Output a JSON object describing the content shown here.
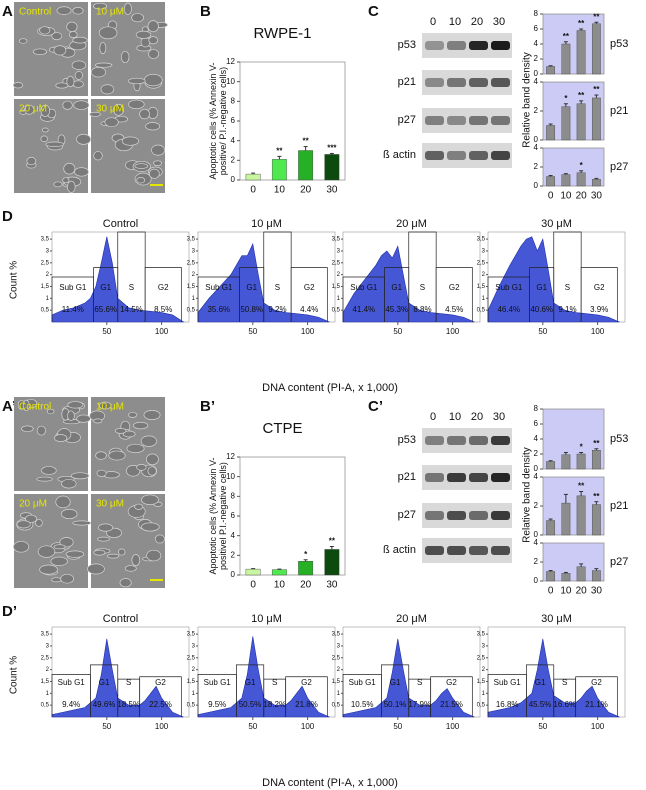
{
  "panel_labels": [
    "A",
    "B",
    "C",
    "D",
    "A’",
    "B’",
    "C’",
    "D’"
  ],
  "micrographs": [
    {
      "labels": [
        "Control",
        "10 μM",
        "20 μM",
        "30 μM"
      ]
    },
    {
      "labels": [
        "Control",
        "10 μM",
        "20 μM",
        "30 μM"
      ]
    }
  ],
  "blots": [
    {
      "lanes": [
        "0",
        "10",
        "20",
        "30"
      ],
      "proteins": [
        "p53",
        "p21",
        "p27",
        "ß actin"
      ]
    },
    {
      "lanes": [
        "0",
        "10",
        "20",
        "30"
      ],
      "proteins": [
        "p53",
        "p21",
        "p27",
        "ß actin"
      ]
    }
  ],
  "chart_data": [
    {
      "type": "bar",
      "title": "RWPE-1",
      "ylabel": "Apoptotic cells (% Annexin V-positive/ P.I.-negative cells)",
      "categories": [
        "0",
        "10",
        "20",
        "30"
      ],
      "values": [
        0.6,
        2.1,
        3.0,
        2.6
      ],
      "errors": [
        0.1,
        0.3,
        0.4,
        0.1
      ],
      "annotations": [
        null,
        "**",
        "**",
        "***"
      ],
      "colors": [
        "#c8f5a0",
        "#4fe84f",
        "#25b025",
        "#0d4a0d"
      ],
      "ylim": [
        0,
        12
      ],
      "yticks": [
        0,
        2,
        4,
        6,
        8,
        10,
        12
      ]
    },
    {
      "type": "bar",
      "label": "p53",
      "ylabel": "Relative band density",
      "values": [
        1,
        4,
        5.8,
        6.7
      ],
      "errors": [
        0.1,
        0.3,
        0.2,
        0.2
      ],
      "annotations": [
        null,
        "**",
        "**",
        "**"
      ],
      "color": "#8c8c8c",
      "ylim": [
        0,
        8
      ],
      "yticks": [
        0,
        2,
        4,
        6,
        8
      ]
    },
    {
      "type": "bar",
      "label": "p21",
      "values": [
        1,
        2.3,
        2.5,
        2.9
      ],
      "errors": [
        0.1,
        0.2,
        0.2,
        0.2
      ],
      "annotations": [
        null,
        "*",
        "**",
        "**"
      ],
      "color": "#8c8c8c",
      "ylim": [
        0,
        4
      ],
      "yticks": [
        0,
        2,
        4
      ]
    },
    {
      "type": "bar",
      "label": "p27",
      "categories": [
        "0",
        "10",
        "20",
        "30"
      ],
      "values": [
        1,
        1.2,
        1.4,
        0.7
      ],
      "errors": [
        0.1,
        0.1,
        0.2,
        0.1
      ],
      "annotations": [
        null,
        null,
        "*",
        null
      ],
      "color": "#8c8c8c",
      "ylim": [
        0,
        4
      ],
      "yticks": [
        0,
        2,
        4
      ]
    },
    {
      "type": "area",
      "xlabel": "DNA content (PI-A, x 1,000)",
      "ylabel": "Count %",
      "x": [
        0,
        10,
        20,
        30,
        35,
        40,
        45,
        50,
        55,
        60,
        70,
        80,
        90,
        100,
        110,
        120
      ],
      "xlim": [
        0,
        125
      ],
      "xticks": [
        50,
        100
      ],
      "ylim": [
        0,
        3.8
      ],
      "yticks": [
        {
          "value": 0.5,
          "label": "0,5"
        },
        1,
        {
          "value": 1.5,
          "label": "1,5"
        },
        2,
        {
          "value": 2.5,
          "label": "2,5"
        },
        3,
        {
          "value": 3.5,
          "label": "3,5"
        }
      ],
      "gate_names": [
        "Sub G1",
        "G1",
        "S",
        "G2"
      ],
      "gate_edges": [
        0,
        38,
        60,
        85,
        118
      ],
      "gate_heights": [
        1.9,
        2.3,
        3.8,
        2.3
      ],
      "color": "#4657d6",
      "panels": [
        {
          "title": "Control",
          "values": [
            0.3,
            0.5,
            0.6,
            0.8,
            1.0,
            1.5,
            2.5,
            3.6,
            2.5,
            1.0,
            0.6,
            0.5,
            0.45,
            0.4,
            0.3,
            0
          ],
          "gate_labels": [
            "11.4%",
            "65.6%",
            "14.5%",
            "8.5%"
          ]
        },
        {
          "title": "10 μM",
          "values": [
            0.4,
            1.0,
            1.5,
            2.0,
            2.4,
            2.8,
            2.8,
            3.3,
            2.0,
            0.8,
            0.5,
            0.4,
            0.35,
            0.3,
            0.2,
            0
          ],
          "gate_labels": [
            "35.6%",
            "50.8%",
            "9.2%",
            "4.4%"
          ]
        },
        {
          "title": "20 μM",
          "values": [
            0.4,
            1.2,
            1.8,
            2.4,
            2.8,
            3.0,
            2.7,
            3.2,
            2.0,
            0.8,
            0.5,
            0.4,
            0.35,
            0.3,
            0.2,
            0
          ],
          "gate_labels": [
            "41.4%",
            "45.3%",
            "8.8%",
            "4.5%"
          ]
        },
        {
          "title": "30 μM",
          "values": [
            0.5,
            1.5,
            2.4,
            3.2,
            3.5,
            3.6,
            3.0,
            3.5,
            2.2,
            0.8,
            0.5,
            0.4,
            0.35,
            0.3,
            0.2,
            0
          ],
          "gate_labels": [
            "46.4%",
            "40.6%",
            "9.1%",
            "3.9%"
          ]
        }
      ]
    },
    {
      "type": "bar",
      "title": "CTPE",
      "ylabel": "Apoptotic cells (% Annexin V-positivel P.I.-negative cells)",
      "categories": [
        "0",
        "10",
        "20",
        "30"
      ],
      "values": [
        0.6,
        0.55,
        1.4,
        2.6
      ],
      "errors": [
        0.05,
        0.05,
        0.15,
        0.3
      ],
      "annotations": [
        null,
        null,
        "*",
        "**"
      ],
      "colors": [
        "#c8f5a0",
        "#4fe84f",
        "#25b025",
        "#0d4a0d"
      ],
      "ylim": [
        0,
        12
      ],
      "yticks": [
        0,
        2,
        4,
        6,
        8,
        10,
        12
      ]
    },
    {
      "type": "bar",
      "label": "p53",
      "ylabel": "Relative band density",
      "values": [
        1,
        1.9,
        2,
        2.5
      ],
      "errors": [
        0.1,
        0.3,
        0.2,
        0.2
      ],
      "annotations": [
        null,
        null,
        "*",
        "**"
      ],
      "color": "#8c8c8c",
      "ylim": [
        0,
        8
      ],
      "yticks": [
        0,
        2,
        4,
        6,
        8
      ]
    },
    {
      "type": "bar",
      "label": "p21",
      "values": [
        1,
        2.2,
        2.7,
        2.1
      ],
      "errors": [
        0.1,
        0.6,
        0.3,
        0.2
      ],
      "annotations": [
        null,
        null,
        "**",
        "**"
      ],
      "color": "#8c8c8c",
      "ylim": [
        0,
        4
      ],
      "yticks": [
        0,
        2,
        4
      ]
    },
    {
      "type": "bar",
      "label": "p27",
      "categories": [
        "0",
        "10",
        "20",
        "30"
      ],
      "values": [
        1,
        0.8,
        1.5,
        1.1
      ],
      "errors": [
        0.1,
        0.1,
        0.3,
        0.2
      ],
      "annotations": [
        null,
        null,
        null,
        null
      ],
      "color": "#8c8c8c",
      "ylim": [
        0,
        4
      ],
      "yticks": [
        0,
        2,
        4
      ]
    },
    {
      "type": "area",
      "xlabel": "DNA content (PI-A, x 1,000)",
      "ylabel": "Count %",
      "x": [
        0,
        10,
        20,
        30,
        40,
        45,
        50,
        55,
        60,
        70,
        80,
        85,
        90,
        95,
        100,
        110,
        120
      ],
      "xlim": [
        0,
        125
      ],
      "xticks": [
        50,
        100
      ],
      "ylim": [
        0,
        3.8
      ],
      "yticks": [
        {
          "value": 0.5,
          "label": "0,5"
        },
        1,
        {
          "value": 1.5,
          "label": "1,5"
        },
        2,
        {
          "value": 2.5,
          "label": "2,5"
        },
        3,
        {
          "value": 3.5,
          "label": "3,5"
        }
      ],
      "gate_names": [
        "Sub G1",
        "G1",
        "S",
        "G2"
      ],
      "gate_edges": [
        0,
        35,
        60,
        80,
        118
      ],
      "gate_heights": [
        1.8,
        2.2,
        1.6,
        1.7
      ],
      "color": "#4657d6",
      "panels": [
        {
          "title": "Control",
          "values": [
            0.1,
            0.2,
            0.3,
            0.4,
            0.8,
            1.8,
            3.3,
            2.0,
            0.8,
            0.5,
            0.5,
            0.7,
            1.0,
            1.3,
            0.8,
            0.2,
            0
          ],
          "gate_labels": [
            "9.4%",
            "49.6%",
            "18.5%",
            "22.5%"
          ]
        },
        {
          "title": "10 μM",
          "values": [
            0.1,
            0.2,
            0.3,
            0.4,
            0.8,
            1.8,
            3.4,
            2.0,
            0.8,
            0.5,
            0.5,
            0.7,
            1.0,
            1.3,
            0.8,
            0.2,
            0
          ],
          "gate_labels": [
            "9.5%",
            "50.5%",
            "18.2%",
            "21.8%"
          ]
        },
        {
          "title": "20 μM",
          "values": [
            0.1,
            0.2,
            0.3,
            0.4,
            0.8,
            1.9,
            3.3,
            2.0,
            0.8,
            0.5,
            0.5,
            0.7,
            1.0,
            1.2,
            0.8,
            0.2,
            0
          ],
          "gate_labels": [
            "10.5%",
            "50.1%",
            "17.9%",
            "21.5%"
          ]
        },
        {
          "title": "30 μM",
          "values": [
            0.2,
            0.3,
            0.4,
            0.6,
            1.0,
            2.0,
            3.3,
            2.0,
            0.9,
            0.6,
            0.6,
            0.8,
            1.1,
            1.3,
            0.8,
            0.2,
            0
          ],
          "gate_labels": [
            "16.8%",
            "45.5%",
            "16.6%",
            "21.1%"
          ]
        }
      ]
    }
  ]
}
